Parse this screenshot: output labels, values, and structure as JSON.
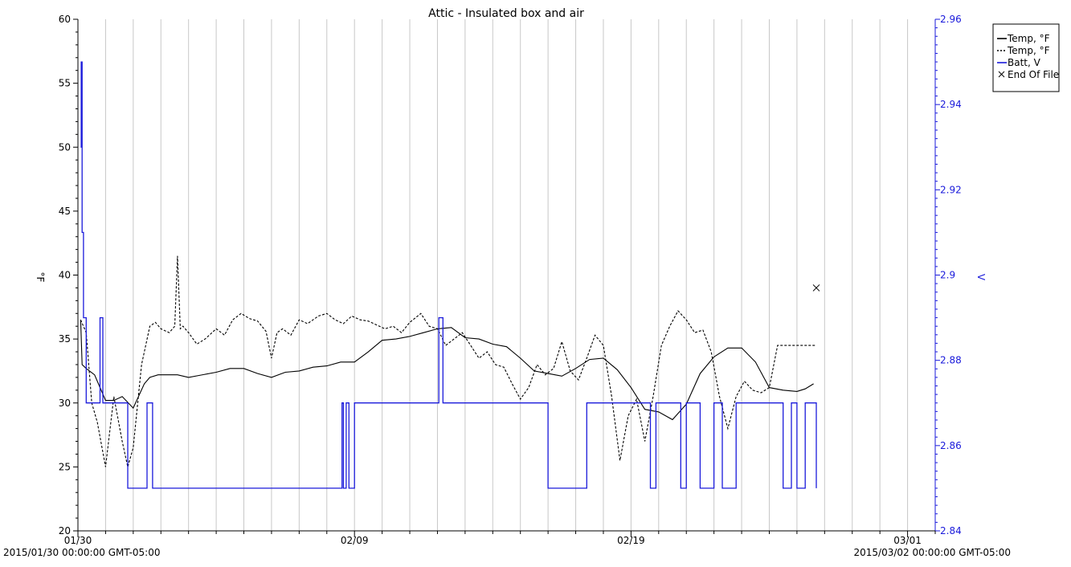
{
  "chart_data": {
    "type": "line",
    "title": "Attic - Insulated box and air",
    "ylabel_left": "°F",
    "ylabel_right": "V",
    "x_ticks": [
      "01/30",
      "02/09",
      "02/19",
      "03/01"
    ],
    "x_start_label": "2015/01/30 00:00:00 GMT-05:00",
    "x_end_label": "2015/03/02 00:00:00 GMT-05:00",
    "x_range_days": [
      0,
      31
    ],
    "ylim_left": [
      20,
      60
    ],
    "yticks_left": [
      "20",
      "25",
      "30",
      "35",
      "40",
      "45",
      "50",
      "55",
      "60"
    ],
    "ylim_right": [
      2.84,
      2.96
    ],
    "yticks_right": [
      "2.84",
      "2.86",
      "2.88",
      "2.9",
      "2.92",
      "2.94",
      "2.96"
    ],
    "grid": "vertical",
    "legend": {
      "placement": "top-right",
      "entries": [
        {
          "label": "Temp, °F",
          "style": "solid",
          "color": "#000000"
        },
        {
          "label": "Temp, °F",
          "style": "dotted",
          "color": "#000000"
        },
        {
          "label": "Batt, V",
          "style": "solid",
          "color": "#1a1adb"
        },
        {
          "label": "End Of File",
          "style": "marker-x",
          "color": "#000000"
        }
      ]
    },
    "series": [
      {
        "axis": "left",
        "style": "solid",
        "color": "#000000",
        "x": [
          0.1,
          0.15,
          0.3,
          0.6,
          1.0,
          1.3,
          1.6,
          2.0,
          2.4,
          2.6,
          2.9,
          3.2,
          3.6,
          4.0,
          5.0,
          5.5,
          6.0,
          6.5,
          7.0,
          7.5,
          8.0,
          8.5,
          9.0,
          9.5,
          10.0,
          10.5,
          11.0,
          11.5,
          12.0,
          12.5,
          13.0,
          13.5,
          14.0,
          14.5,
          15.0,
          15.5,
          16.0,
          16.5,
          17.0,
          17.5,
          18.0,
          18.5,
          19.0,
          19.5,
          20.0,
          20.5,
          21.0,
          21.5,
          22.0,
          22.5,
          23.0,
          23.5,
          24.0,
          24.5,
          25.0,
          25.5,
          26.0,
          26.3,
          26.6
        ],
        "y": [
          36.5,
          33.0,
          32.7,
          32.2,
          30.2,
          30.2,
          30.5,
          29.6,
          31.5,
          32.0,
          32.2,
          32.2,
          32.2,
          32.0,
          32.4,
          32.7,
          32.7,
          32.3,
          32.0,
          32.4,
          32.5,
          32.8,
          32.9,
          33.2,
          33.2,
          34.0,
          34.9,
          35.0,
          35.2,
          35.5,
          35.8,
          35.9,
          35.1,
          35.0,
          34.6,
          34.4,
          33.5,
          32.5,
          32.3,
          32.1,
          32.7,
          33.4,
          33.5,
          32.6,
          31.2,
          29.5,
          29.3,
          28.7,
          29.9,
          32.3,
          33.6,
          34.3,
          34.3,
          33.2,
          31.2,
          31.0,
          30.9,
          31.1,
          31.5
        ]
      },
      {
        "axis": "left",
        "style": "dotted",
        "color": "#000000",
        "x": [
          0.1,
          0.3,
          0.5,
          0.7,
          1.0,
          1.3,
          1.6,
          1.8,
          2.0,
          2.3,
          2.6,
          2.8,
          3.0,
          3.3,
          3.5,
          3.6,
          3.7,
          3.8,
          4.0,
          4.3,
          4.6,
          5.0,
          5.3,
          5.6,
          5.9,
          6.2,
          6.5,
          6.8,
          7.0,
          7.2,
          7.4,
          7.7,
          8.0,
          8.3,
          8.7,
          9.0,
          9.3,
          9.6,
          9.9,
          10.2,
          10.5,
          10.8,
          11.1,
          11.4,
          11.7,
          12.0,
          12.4,
          12.7,
          13.0,
          13.3,
          13.6,
          13.9,
          14.2,
          14.5,
          14.8,
          15.1,
          15.4,
          15.7,
          16.0,
          16.3,
          16.6,
          16.9,
          17.2,
          17.5,
          17.8,
          18.1,
          18.4,
          18.7,
          19.0,
          19.3,
          19.6,
          19.9,
          20.2,
          20.5,
          20.8,
          21.1,
          21.4,
          21.7,
          22.0,
          22.3,
          22.6,
          22.9,
          23.2,
          23.5,
          23.8,
          24.1,
          24.4,
          24.7,
          25.0,
          25.3,
          25.6,
          25.9,
          26.2,
          26.5,
          26.7
        ],
        "y": [
          36.5,
          35.5,
          30.0,
          28.5,
          25.0,
          30.5,
          27.0,
          25.0,
          26.5,
          33.0,
          36.0,
          36.3,
          35.8,
          35.5,
          36.0,
          41.5,
          35.8,
          36.0,
          35.5,
          34.6,
          35.0,
          35.8,
          35.3,
          36.5,
          37.0,
          36.6,
          36.4,
          35.6,
          33.5,
          35.5,
          35.8,
          35.3,
          36.5,
          36.2,
          36.8,
          37.0,
          36.5,
          36.2,
          36.8,
          36.5,
          36.4,
          36.1,
          35.8,
          36.0,
          35.5,
          36.3,
          37.0,
          36.0,
          35.8,
          34.5,
          35.0,
          35.5,
          34.5,
          33.5,
          34.0,
          33.0,
          32.8,
          31.5,
          30.3,
          31.2,
          33.0,
          32.2,
          32.7,
          34.8,
          32.5,
          31.8,
          33.5,
          35.3,
          34.5,
          30.5,
          25.5,
          29.0,
          30.3,
          27.0,
          30.5,
          34.5,
          36.0,
          37.2,
          36.5,
          35.5,
          35.7,
          34.0,
          30.5,
          28.0,
          30.5,
          31.7,
          31.0,
          30.8,
          31.2,
          34.5,
          34.5,
          34.5,
          34.5,
          34.5,
          34.5
        ]
      },
      {
        "axis": "right",
        "style": "step",
        "color": "#1a1adb",
        "x": [
          0.1,
          0.12,
          0.15,
          0.2,
          0.3,
          0.8,
          0.9,
          1.0,
          1.2,
          1.5,
          1.8,
          2.2,
          2.5,
          2.7,
          3.0,
          3.5,
          9.5,
          9.55,
          9.6,
          9.7,
          9.8,
          10.0,
          10.5,
          13.0,
          13.05,
          13.2,
          13.3,
          14.0,
          17.0,
          17.5,
          18.0,
          18.4,
          18.5,
          19.0,
          20.0,
          20.7,
          20.9,
          21.8,
          22.0,
          22.5,
          23.0,
          23.3,
          23.8,
          24.0,
          25.5,
          25.8,
          26.0,
          26.3,
          26.5,
          26.7
        ],
        "y": [
          2.93,
          2.95,
          2.91,
          2.89,
          2.87,
          2.89,
          2.87,
          2.87,
          2.87,
          2.87,
          2.85,
          2.85,
          2.87,
          2.85,
          2.85,
          2.85,
          2.85,
          2.87,
          2.85,
          2.87,
          2.85,
          2.87,
          2.87,
          2.87,
          2.89,
          2.87,
          2.87,
          2.87,
          2.85,
          2.85,
          2.85,
          2.87,
          2.87,
          2.87,
          2.87,
          2.85,
          2.87,
          2.85,
          2.87,
          2.85,
          2.87,
          2.85,
          2.87,
          2.87,
          2.85,
          2.87,
          2.85,
          2.87,
          2.87,
          2.85
        ]
      }
    ],
    "annotations": [
      {
        "label": "End Of File",
        "marker": "x",
        "x": 26.7,
        "y_left": 39.0
      }
    ]
  }
}
